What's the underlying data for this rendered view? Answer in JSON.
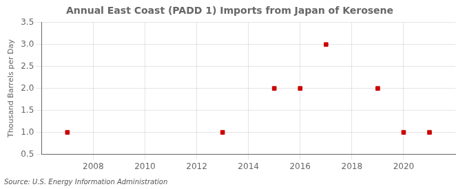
{
  "chart_data": {
    "type": "scatter",
    "title": "Annual East Coast (PADD 1) Imports from Japan of Kerosene",
    "y_label": "Thousand Barrels per Day",
    "annotation": "Source: U.S. Energy Information Administration",
    "x": [
      2007,
      2013,
      2015,
      2016,
      2017,
      2019,
      2020,
      2021
    ],
    "values": [
      1.0,
      1.0,
      2.0,
      2.0,
      3.0,
      2.0,
      1.0,
      1.0
    ],
    "color": "#cc0000",
    "marker": "square",
    "xlim": [
      2006.0,
      2022.0
    ],
    "xticks": [
      2008,
      2010,
      2012,
      2014,
      2016,
      2018,
      2020
    ],
    "ylim": [
      0.5,
      3.5
    ],
    "yticks": [
      0.5,
      {
        "value": 1.0,
        "label": "1.0"
      },
      1.5,
      {
        "value": 2.0,
        "label": "2.0"
      },
      2.5,
      {
        "value": 3.0,
        "label": "3.0"
      },
      3.5
    ],
    "grid": true
  }
}
